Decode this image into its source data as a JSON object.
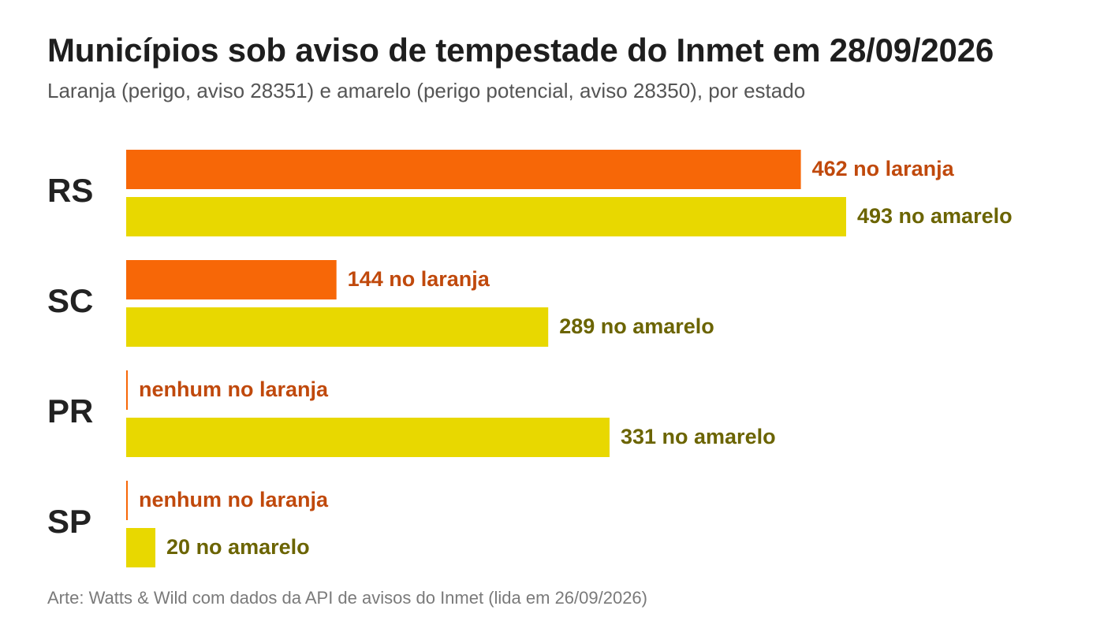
{
  "chart_data": {
    "type": "bar",
    "orientation": "horizontal",
    "title": "Municípios sob aviso de tempestade do Inmet em 28/09/2026",
    "subtitle": "Laranja (perigo, aviso 28351) e amarelo (perigo potencial, aviso 28350), por estado",
    "source": "Arte: Watts & Wild com dados da API de avisos do Inmet (lida em 26/09/2026)",
    "categories": [
      "RS",
      "SC",
      "PR",
      "SP"
    ],
    "series": [
      {
        "key": "laranja",
        "color": "#f76707",
        "label_color": "#c0490c",
        "values": [
          462,
          144,
          0,
          0
        ],
        "labels": [
          "462 no laranja",
          "144 no laranja",
          "nenhum no laranja",
          "nenhum no laranja"
        ]
      },
      {
        "key": "amarelo",
        "color": "#e8d800",
        "label_color": "#6b6400",
        "values": [
          493,
          289,
          331,
          20
        ],
        "labels": [
          "493 no amarelo",
          "289 no amarelo",
          "331 no amarelo",
          "20 no amarelo"
        ]
      }
    ],
    "xlim": [
      0,
      493
    ],
    "grid": false,
    "legend": "none"
  }
}
